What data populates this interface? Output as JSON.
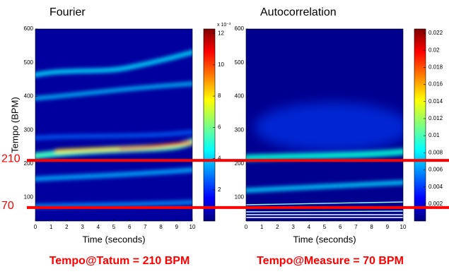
{
  "chart_data": [
    {
      "type": "heatmap",
      "title": "Fourier",
      "xlabel": "Time (seconds)",
      "ylabel": "Tempo (BPM)",
      "xlim": [
        0,
        10
      ],
      "xticks": [
        0,
        1,
        2,
        3,
        4,
        5,
        6,
        7,
        8,
        9,
        10
      ],
      "ylim": [
        30,
        600
      ],
      "yticks": [
        100,
        200,
        300,
        400,
        500,
        600
      ],
      "colorbar_label": "x 10⁻³",
      "colorbar_lim": [
        0,
        12.3
      ],
      "colorbar_ticks": [
        2,
        4,
        6,
        8,
        10,
        12
      ],
      "hlines": [
        210,
        70
      ],
      "hline_color": "#ff0000",
      "annotation": "Tempo@Tatum = 210 BPM"
    },
    {
      "type": "heatmap",
      "title": "Autocorrelation",
      "xlabel": "Time (seconds)",
      "xlim": [
        0,
        10
      ],
      "xticks": [
        0,
        1,
        2,
        3,
        4,
        5,
        6,
        7,
        8,
        9,
        10
      ],
      "ylim": [
        30,
        600
      ],
      "yticks": [
        100,
        200,
        300,
        400,
        500,
        600
      ],
      "colorbar_lim": [
        0,
        0.0225
      ],
      "colorbar_ticks": [
        0.002,
        0.004,
        0.006,
        0.008,
        0.01,
        0.012,
        0.014,
        0.016,
        0.018,
        0.02,
        0.022
      ],
      "annotation": "Tempo@Measure = 70 BPM"
    }
  ]
}
